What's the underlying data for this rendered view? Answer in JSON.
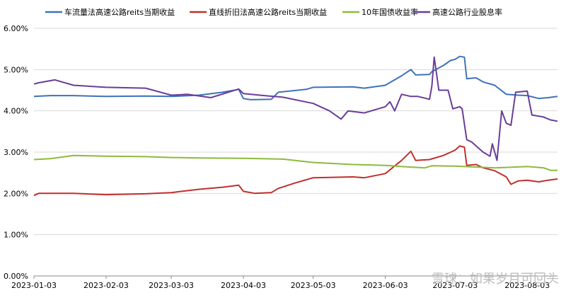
{
  "chart_data": {
    "type": "line",
    "x_ticks": [
      "2023-01-03",
      "2023-02-03",
      "2023-03-03",
      "2023-04-03",
      "2023-05-03",
      "2023-06-03",
      "2023-07-03",
      "2023-08-03"
    ],
    "xlim": [
      "2023-01-03",
      "2023-08-16"
    ],
    "y_ticks": [
      "0.00%",
      "1.00%",
      "2.00%",
      "3.00%",
      "4.00%",
      "5.00%",
      "6.00%"
    ],
    "ylim": [
      0,
      6
    ],
    "y_unit": "%",
    "grid": true,
    "legend_position": "top",
    "series": [
      {
        "name": "车流量法高速公路reits当期收益",
        "color": "#3f72b9",
        "points": [
          [
            "2023-01-03",
            4.35
          ],
          [
            "2023-01-10",
            4.37
          ],
          [
            "2023-01-20",
            4.37
          ],
          [
            "2023-02-03",
            4.35
          ],
          [
            "2023-02-20",
            4.36
          ],
          [
            "2023-03-03",
            4.35
          ],
          [
            "2023-03-15",
            4.38
          ],
          [
            "2023-03-25",
            4.45
          ],
          [
            "2023-04-01",
            4.52
          ],
          [
            "2023-04-03",
            4.3
          ],
          [
            "2023-04-06",
            4.27
          ],
          [
            "2023-04-15",
            4.28
          ],
          [
            "2023-04-18",
            4.45
          ],
          [
            "2023-04-30",
            4.52
          ],
          [
            "2023-05-03",
            4.57
          ],
          [
            "2023-05-20",
            4.58
          ],
          [
            "2023-05-25",
            4.55
          ],
          [
            "2023-06-03",
            4.62
          ],
          [
            "2023-06-10",
            4.85
          ],
          [
            "2023-06-14",
            5.0
          ],
          [
            "2023-06-16",
            4.87
          ],
          [
            "2023-06-22",
            4.88
          ],
          [
            "2023-06-23",
            4.95
          ],
          [
            "2023-06-28",
            5.1
          ],
          [
            "2023-07-01",
            5.22
          ],
          [
            "2023-07-03",
            5.25
          ],
          [
            "2023-07-05",
            5.32
          ],
          [
            "2023-07-07",
            5.3
          ],
          [
            "2023-07-08",
            4.78
          ],
          [
            "2023-07-12",
            4.8
          ],
          [
            "2023-07-15",
            4.7
          ],
          [
            "2023-07-20",
            4.62
          ],
          [
            "2023-07-25",
            4.4
          ],
          [
            "2023-07-30",
            4.38
          ],
          [
            "2023-08-03",
            4.37
          ],
          [
            "2023-08-08",
            4.3
          ],
          [
            "2023-08-12",
            4.32
          ],
          [
            "2023-08-16",
            4.35
          ]
        ]
      },
      {
        "name": "直线折旧法高速公路reits当期收益",
        "color": "#c0302d",
        "points": [
          [
            "2023-01-03",
            1.95
          ],
          [
            "2023-01-05",
            2.0
          ],
          [
            "2023-01-20",
            2.0
          ],
          [
            "2023-02-03",
            1.97
          ],
          [
            "2023-02-20",
            1.99
          ],
          [
            "2023-03-03",
            2.02
          ],
          [
            "2023-03-15",
            2.1
          ],
          [
            "2023-03-25",
            2.15
          ],
          [
            "2023-04-01",
            2.2
          ],
          [
            "2023-04-03",
            2.05
          ],
          [
            "2023-04-08",
            2.0
          ],
          [
            "2023-04-15",
            2.02
          ],
          [
            "2023-04-18",
            2.12
          ],
          [
            "2023-04-25",
            2.25
          ],
          [
            "2023-05-03",
            2.38
          ],
          [
            "2023-05-20",
            2.4
          ],
          [
            "2023-05-25",
            2.38
          ],
          [
            "2023-06-03",
            2.48
          ],
          [
            "2023-06-10",
            2.8
          ],
          [
            "2023-06-14",
            3.02
          ],
          [
            "2023-06-16",
            2.8
          ],
          [
            "2023-06-22",
            2.82
          ],
          [
            "2023-06-28",
            2.92
          ],
          [
            "2023-07-03",
            3.05
          ],
          [
            "2023-07-05",
            3.15
          ],
          [
            "2023-07-07",
            3.12
          ],
          [
            "2023-07-08",
            2.68
          ],
          [
            "2023-07-12",
            2.7
          ],
          [
            "2023-07-15",
            2.62
          ],
          [
            "2023-07-20",
            2.55
          ],
          [
            "2023-07-25",
            2.4
          ],
          [
            "2023-07-27",
            2.22
          ],
          [
            "2023-07-30",
            2.3
          ],
          [
            "2023-08-03",
            2.32
          ],
          [
            "2023-08-08",
            2.28
          ],
          [
            "2023-08-12",
            2.32
          ],
          [
            "2023-08-16",
            2.35
          ]
        ]
      },
      {
        "name": "10年国债收益率",
        "color": "#8dba3f",
        "points": [
          [
            "2023-01-03",
            2.82
          ],
          [
            "2023-01-10",
            2.84
          ],
          [
            "2023-01-20",
            2.92
          ],
          [
            "2023-02-03",
            2.9
          ],
          [
            "2023-02-20",
            2.89
          ],
          [
            "2023-03-03",
            2.87
          ],
          [
            "2023-03-15",
            2.86
          ],
          [
            "2023-04-03",
            2.85
          ],
          [
            "2023-04-20",
            2.83
          ],
          [
            "2023-05-03",
            2.75
          ],
          [
            "2023-05-20",
            2.7
          ],
          [
            "2023-06-03",
            2.68
          ],
          [
            "2023-06-10",
            2.65
          ],
          [
            "2023-06-20",
            2.62
          ],
          [
            "2023-06-23",
            2.67
          ],
          [
            "2023-07-03",
            2.66
          ],
          [
            "2023-07-20",
            2.62
          ],
          [
            "2023-08-03",
            2.65
          ],
          [
            "2023-08-10",
            2.62
          ],
          [
            "2023-08-13",
            2.56
          ],
          [
            "2023-08-16",
            2.56
          ]
        ]
      },
      {
        "name": "高速公路行业股息率",
        "color": "#6a3d98",
        "points": [
          [
            "2023-01-03",
            4.65
          ],
          [
            "2023-01-05",
            4.68
          ],
          [
            "2023-01-12",
            4.75
          ],
          [
            "2023-01-20",
            4.62
          ],
          [
            "2023-02-03",
            4.57
          ],
          [
            "2023-02-20",
            4.55
          ],
          [
            "2023-03-03",
            4.38
          ],
          [
            "2023-03-10",
            4.4
          ],
          [
            "2023-03-20",
            4.32
          ],
          [
            "2023-04-01",
            4.53
          ],
          [
            "2023-04-03",
            4.42
          ],
          [
            "2023-04-10",
            4.38
          ],
          [
            "2023-04-20",
            4.33
          ],
          [
            "2023-05-03",
            4.18
          ],
          [
            "2023-05-10",
            4.0
          ],
          [
            "2023-05-15",
            3.8
          ],
          [
            "2023-05-18",
            4.0
          ],
          [
            "2023-05-25",
            3.95
          ],
          [
            "2023-06-03",
            4.1
          ],
          [
            "2023-06-05",
            4.22
          ],
          [
            "2023-06-07",
            4.0
          ],
          [
            "2023-06-10",
            4.4
          ],
          [
            "2023-06-14",
            4.35
          ],
          [
            "2023-06-17",
            4.35
          ],
          [
            "2023-06-22",
            4.28
          ],
          [
            "2023-06-23",
            4.6
          ],
          [
            "2023-06-24",
            5.3
          ],
          [
            "2023-06-26",
            4.5
          ],
          [
            "2023-06-30",
            4.5
          ],
          [
            "2023-07-02",
            4.05
          ],
          [
            "2023-07-05",
            4.1
          ],
          [
            "2023-07-06",
            4.05
          ],
          [
            "2023-07-08",
            3.3
          ],
          [
            "2023-07-10",
            3.25
          ],
          [
            "2023-07-15",
            3.0
          ],
          [
            "2023-07-18",
            2.9
          ],
          [
            "2023-07-19",
            3.2
          ],
          [
            "2023-07-21",
            2.8
          ],
          [
            "2023-07-23",
            4.0
          ],
          [
            "2023-07-25",
            3.7
          ],
          [
            "2023-07-27",
            3.65
          ],
          [
            "2023-07-29",
            4.45
          ],
          [
            "2023-08-03",
            4.48
          ],
          [
            "2023-08-05",
            3.9
          ],
          [
            "2023-08-10",
            3.85
          ],
          [
            "2023-08-13",
            3.78
          ],
          [
            "2023-08-16",
            3.75
          ]
        ]
      }
    ]
  },
  "watermark": "雪球：如果岁月可回头"
}
